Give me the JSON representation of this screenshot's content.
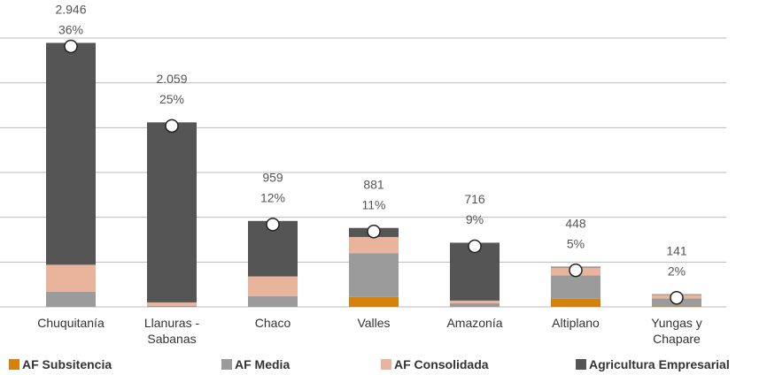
{
  "chart_data": {
    "type": "stacked_bar",
    "categories": [
      "Chuquitanía",
      "Llanuras - Sabanas",
      "Chaco",
      "Valles",
      "Amazonía",
      "Altiplano",
      "Yungas y Chapare"
    ],
    "series": [
      {
        "name": "AF Subsitencia",
        "color": "#d4820a",
        "values": [
          0,
          0,
          0,
          110,
          0,
          90,
          5
        ]
      },
      {
        "name": "AF Media",
        "color": "#9b9b9b",
        "values": [
          170,
          10,
          120,
          490,
          40,
          260,
          90
        ]
      },
      {
        "name": "AF Consolidada",
        "color": "#e8b59c",
        "values": [
          300,
          40,
          220,
          180,
          30,
          90,
          40
        ]
      },
      {
        "name": "Agricultura Empresarial",
        "color": "#555555",
        "values": [
          2476,
          2009,
          619,
          101,
          646,
          8,
          6
        ]
      }
    ],
    "totals": {
      "values": [
        2946,
        2059,
        959,
        881,
        716,
        448,
        141
      ],
      "value_labels": [
        "2.946",
        "2.059",
        "959",
        "881",
        "716",
        "448",
        "141"
      ]
    },
    "shares": {
      "values": [
        36,
        25,
        12,
        11,
        9,
        5,
        2
      ],
      "value_labels": [
        "36%",
        "25%",
        "12%",
        "11%",
        "9%",
        "5%",
        "2%"
      ]
    },
    "ylim": [
      0,
      3000
    ],
    "yticks": [
      0,
      500,
      1000,
      1500,
      2000,
      2500,
      3000
    ],
    "grid": true
  }
}
